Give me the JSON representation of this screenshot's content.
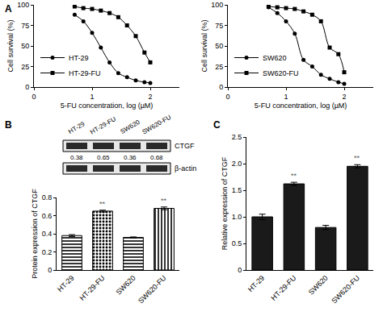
{
  "chart_data": [
    {
      "panel": "A",
      "type": "line",
      "x_label": "5-FU concentration, log (µM)",
      "y_label": "Cell survival (%)",
      "x": [
        0.7,
        0.85,
        1.0,
        1.15,
        1.3,
        1.45,
        1.6,
        1.75,
        1.9,
        2.0
      ],
      "series": [
        {
          "name": "HT-29",
          "color": "#000000",
          "marker": "circle",
          "values": [
            88,
            80,
            66,
            48,
            30,
            17,
            12,
            8,
            6,
            5
          ]
        },
        {
          "name": "HT-29-FU",
          "color": "#000000",
          "marker": "square",
          "values": [
            98,
            96,
            95,
            93,
            90,
            85,
            75,
            62,
            42,
            30
          ]
        }
      ],
      "xlim": [
        0,
        2.5
      ],
      "xticks": [
        0,
        1,
        2
      ],
      "ylim": [
        0,
        100
      ],
      "yticks": [
        0,
        25,
        50,
        75,
        100
      ],
      "grid": false,
      "legend": "bottom left"
    },
    {
      "type": "line",
      "x_label": "5-FU concentration, log (µM)",
      "y_label": "Cell survival (%)",
      "x": [
        0.7,
        0.85,
        1.0,
        1.15,
        1.3,
        1.45,
        1.6,
        1.75,
        1.9,
        2.0
      ],
      "series": [
        {
          "name": "SW620",
          "color": "#000000",
          "marker": "circle",
          "values": [
            97,
            90,
            80,
            65,
            33,
            25,
            15,
            10,
            6,
            4
          ]
        },
        {
          "name": "SW620-FU",
          "color": "#000000",
          "marker": "square",
          "values": [
            98,
            97,
            96,
            95,
            92,
            88,
            80,
            48,
            40,
            18
          ]
        }
      ],
      "xlim": [
        0,
        2.5
      ],
      "xticks": [
        0,
        1,
        2
      ],
      "ylim": [
        0,
        100
      ],
      "yticks": [
        0,
        25,
        50,
        75,
        100
      ],
      "grid": false,
      "legend": "bottom left"
    },
    {
      "panel": "B",
      "type": "bar",
      "y_label": "Protein expression of CTGF",
      "categories": [
        "HT-29",
        "HT-29-FU",
        "SW620",
        "SW620-FU"
      ],
      "values": [
        0.38,
        0.65,
        0.36,
        0.68
      ],
      "errors": [
        0.01,
        0.01,
        0.005,
        0.015
      ],
      "color": "#ffffff",
      "ylim": [
        0,
        0.8
      ],
      "yticks": [
        0,
        0.2,
        0.4,
        0.6,
        0.8
      ],
      "grid": false,
      "annotations": [
        {
          "category": "HT-29-FU",
          "text": "**"
        },
        {
          "category": "SW620-FU",
          "text": "**"
        }
      ],
      "blot": {
        "bands": [
          "CTGF",
          "β-actin"
        ],
        "values": [
          0.38,
          0.65,
          0.36,
          0.68
        ]
      }
    },
    {
      "panel": "C",
      "type": "bar",
      "y_label": "Relative expression of CTGF",
      "categories": [
        "HT-29",
        "HT-29-FU",
        "SW620",
        "SW620-FU"
      ],
      "values": [
        1.0,
        1.62,
        0.8,
        1.95
      ],
      "errors": [
        0.05,
        0.03,
        0.04,
        0.03
      ],
      "color": "#1a1a1a",
      "ylim": [
        0,
        2.5
      ],
      "yticks": [
        0,
        0.5,
        {
          "value": 1,
          "label": "1.0"
        },
        1.5,
        {
          "value": 2,
          "label": "2.0"
        },
        2.5
      ],
      "grid": false,
      "annotations": [
        {
          "category": "HT-29-FU",
          "text": "**"
        },
        {
          "category": "SW620-FU",
          "text": "**"
        }
      ]
    }
  ]
}
